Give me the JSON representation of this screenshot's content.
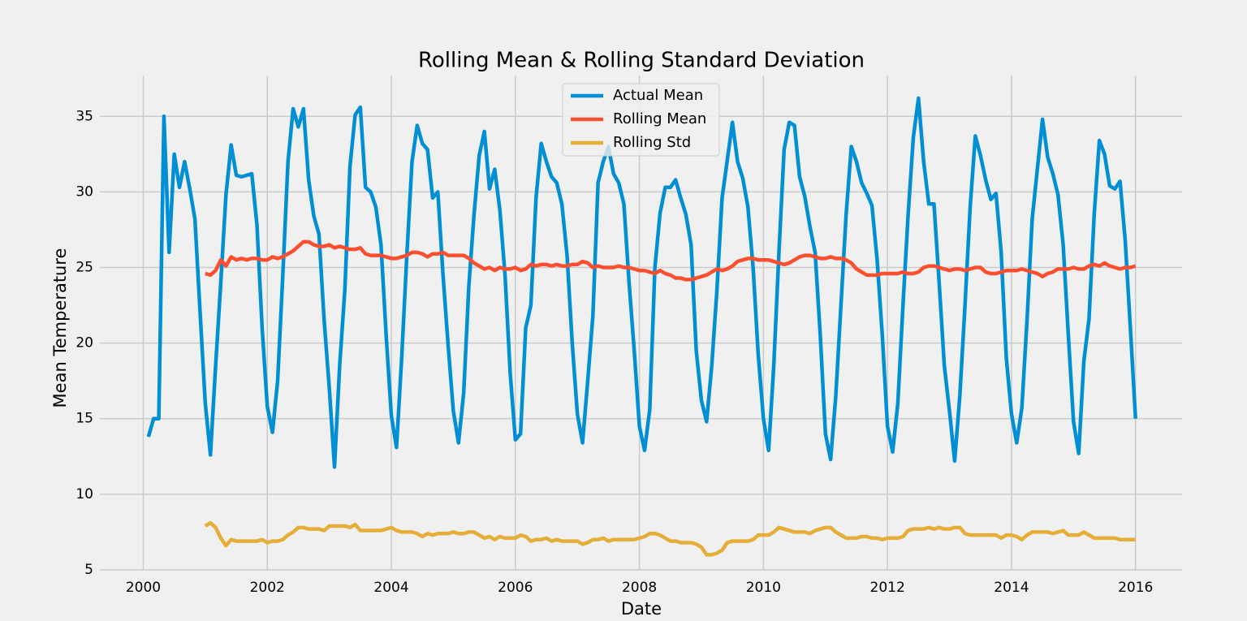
{
  "chart_data": {
    "type": "line",
    "title": "Rolling Mean & Rolling Standard Deviation",
    "x_label": "Date",
    "y_label": "Mean Temperature",
    "x": [
      "2000-01",
      "2000-02",
      "2000-03",
      "2000-04",
      "2000-05",
      "2000-06",
      "2000-07",
      "2000-08",
      "2000-09",
      "2000-10",
      "2000-11",
      "2000-12",
      "2001-01",
      "2001-02",
      "2001-03",
      "2001-04",
      "2001-05",
      "2001-06",
      "2001-07",
      "2001-08",
      "2001-09",
      "2001-10",
      "2001-11",
      "2001-12",
      "2002-01",
      "2002-02",
      "2002-03",
      "2002-04",
      "2002-05",
      "2002-06",
      "2002-07",
      "2002-08",
      "2002-09",
      "2002-10",
      "2002-11",
      "2002-12",
      "2003-01",
      "2003-02",
      "2003-03",
      "2003-04",
      "2003-05",
      "2003-06",
      "2003-07",
      "2003-08",
      "2003-09",
      "2003-10",
      "2003-11",
      "2003-12",
      "2004-01",
      "2004-02",
      "2004-03",
      "2004-04",
      "2004-05",
      "2004-06",
      "2004-07",
      "2004-08",
      "2004-09",
      "2004-10",
      "2004-11",
      "2004-12",
      "2005-01",
      "2005-02",
      "2005-03",
      "2005-04",
      "2005-05",
      "2005-06",
      "2005-07",
      "2005-08",
      "2005-09",
      "2005-10",
      "2005-11",
      "2005-12",
      "2006-01",
      "2006-02",
      "2006-03",
      "2006-04",
      "2006-05",
      "2006-06",
      "2006-07",
      "2006-08",
      "2006-09",
      "2006-10",
      "2006-11",
      "2006-12",
      "2007-01",
      "2007-02",
      "2007-03",
      "2007-04",
      "2007-05",
      "2007-06",
      "2007-07",
      "2007-08",
      "2007-09",
      "2007-10",
      "2007-11",
      "2007-12",
      "2008-01",
      "2008-02",
      "2008-03",
      "2008-04",
      "2008-05",
      "2008-06",
      "2008-07",
      "2008-08",
      "2008-09",
      "2008-10",
      "2008-11",
      "2008-12",
      "2009-01",
      "2009-02",
      "2009-03",
      "2009-04",
      "2009-05",
      "2009-06",
      "2009-07",
      "2009-08",
      "2009-09",
      "2009-10",
      "2009-11",
      "2009-12",
      "2010-01",
      "2010-02",
      "2010-03",
      "2010-04",
      "2010-05",
      "2010-06",
      "2010-07",
      "2010-08",
      "2010-09",
      "2010-10",
      "2010-11",
      "2010-12",
      "2011-01",
      "2011-02",
      "2011-03",
      "2011-04",
      "2011-05",
      "2011-06",
      "2011-07",
      "2011-08",
      "2011-09",
      "2011-10",
      "2011-11",
      "2011-12",
      "2012-01",
      "2012-02",
      "2012-03",
      "2012-04",
      "2012-05",
      "2012-06",
      "2012-07",
      "2012-08",
      "2012-09",
      "2012-10",
      "2012-11",
      "2012-12",
      "2013-01",
      "2013-02",
      "2013-03",
      "2013-04",
      "2013-05",
      "2013-06",
      "2013-07",
      "2013-08",
      "2013-09",
      "2013-10",
      "2013-11",
      "2013-12",
      "2014-01",
      "2014-02",
      "2014-03",
      "2014-04",
      "2014-05",
      "2014-06",
      "2014-07",
      "2014-08",
      "2014-09",
      "2014-10",
      "2014-11",
      "2014-12",
      "2015-01",
      "2015-02",
      "2015-03",
      "2015-04",
      "2015-05",
      "2015-06",
      "2015-07",
      "2015-08",
      "2015-09",
      "2015-10",
      "2015-11",
      "2015-12"
    ],
    "series": [
      {
        "name": "Actual Mean",
        "color": "#008fd5",
        "values": [
          13.8,
          15.0,
          15.0,
          35.0,
          26.0,
          32.5,
          30.3,
          32.0,
          30.2,
          28.2,
          22.0,
          16.0,
          12.6,
          18.5,
          24.0,
          29.8,
          33.1,
          31.1,
          31.0,
          31.1,
          31.2,
          27.8,
          21.0,
          15.8,
          14.1,
          17.5,
          24.5,
          32.0,
          35.5,
          34.3,
          35.5,
          30.8,
          28.4,
          27.2,
          21.5,
          17.0,
          11.8,
          18.5,
          23.5,
          31.7,
          35.1,
          35.6,
          30.3,
          30.0,
          29.0,
          26.5,
          20.5,
          15.2,
          13.1,
          19.0,
          25.8,
          32.0,
          34.4,
          33.2,
          32.8,
          29.6,
          30.0,
          24.5,
          19.8,
          15.5,
          13.4,
          16.7,
          23.8,
          28.5,
          32.4,
          34.0,
          30.2,
          31.5,
          28.8,
          24.5,
          18.0,
          13.6,
          14.0,
          21.0,
          22.5,
          29.6,
          33.2,
          32.0,
          31.0,
          30.6,
          29.2,
          25.8,
          20.0,
          15.3,
          13.4,
          17.5,
          21.8,
          30.6,
          32.0,
          33.0,
          31.2,
          30.6,
          29.2,
          24.0,
          19.5,
          14.5,
          12.9,
          15.6,
          25.0,
          28.6,
          30.3,
          30.3,
          30.8,
          29.6,
          28.5,
          26.5,
          19.5,
          16.2,
          14.8,
          18.5,
          23.5,
          29.6,
          32.1,
          34.6,
          32.0,
          30.9,
          29.0,
          25.0,
          19.2,
          15.0,
          12.9,
          18.5,
          26.0,
          32.8,
          34.6,
          34.4,
          31.0,
          29.7,
          27.7,
          26.0,
          20.5,
          14.0,
          12.3,
          16.5,
          22.5,
          28.5,
          33.0,
          32.0,
          30.6,
          29.9,
          29.1,
          25.5,
          20.5,
          14.5,
          12.8,
          16.0,
          22.5,
          28.5,
          33.6,
          36.2,
          32.0,
          29.2,
          29.2,
          24.0,
          18.5,
          15.5,
          12.2,
          16.5,
          22.5,
          29.0,
          33.7,
          32.4,
          30.8,
          29.5,
          29.9,
          26.0,
          19.0,
          15.3,
          13.4,
          15.7,
          21.5,
          28.2,
          31.5,
          34.8,
          32.3,
          31.2,
          29.8,
          26.5,
          20.5,
          14.8,
          12.7,
          18.8,
          21.6,
          28.5,
          33.4,
          32.5,
          30.4,
          30.2,
          30.7,
          26.8,
          21.0,
          15.0
        ]
      },
      {
        "name": "Rolling Mean",
        "color": "#fc4f30",
        "values": [
          null,
          null,
          null,
          null,
          null,
          null,
          null,
          null,
          null,
          null,
          null,
          24.6,
          24.5,
          24.8,
          25.5,
          25.1,
          25.7,
          25.5,
          25.6,
          25.5,
          25.6,
          25.6,
          25.5,
          25.5,
          25.7,
          25.6,
          25.7,
          25.9,
          26.1,
          26.4,
          26.7,
          26.7,
          26.5,
          26.4,
          26.4,
          26.5,
          26.3,
          26.4,
          26.3,
          26.2,
          26.2,
          26.3,
          25.9,
          25.8,
          25.8,
          25.8,
          25.7,
          25.6,
          25.6,
          25.7,
          25.8,
          26.0,
          26.0,
          25.9,
          25.7,
          25.9,
          25.9,
          26.0,
          25.8,
          25.8,
          25.8,
          25.8,
          25.6,
          25.3,
          25.1,
          24.9,
          25.0,
          24.8,
          25.0,
          24.9,
          24.9,
          25.0,
          24.8,
          24.9,
          25.2,
          25.1,
          25.2,
          25.2,
          25.1,
          25.2,
          25.1,
          25.1,
          25.2,
          25.2,
          25.4,
          25.3,
          25.0,
          25.1,
          25.0,
          25.0,
          25.0,
          25.1,
          25.0,
          25.0,
          24.9,
          24.8,
          24.8,
          24.7,
          24.6,
          24.8,
          24.6,
          24.5,
          24.3,
          24.3,
          24.2,
          24.2,
          24.3,
          24.4,
          24.5,
          24.7,
          24.9,
          24.8,
          24.9,
          25.1,
          25.4,
          25.5,
          25.6,
          25.6,
          25.5,
          25.5,
          25.5,
          25.4,
          25.3,
          25.2,
          25.3,
          25.5,
          25.7,
          25.8,
          25.8,
          25.7,
          25.6,
          25.6,
          25.7,
          25.6,
          25.6,
          25.5,
          25.3,
          24.9,
          24.7,
          24.5,
          24.5,
          24.5,
          24.6,
          24.6,
          24.6,
          24.6,
          24.7,
          24.6,
          24.6,
          24.7,
          25.0,
          25.1,
          25.1,
          25.0,
          24.9,
          24.8,
          24.9,
          24.9,
          24.8,
          24.9,
          25.0,
          25.0,
          24.7,
          24.6,
          24.6,
          24.7,
          24.8,
          24.8,
          24.8,
          24.9,
          24.8,
          24.7,
          24.6,
          24.4,
          24.6,
          24.7,
          24.9,
          24.9,
          24.9,
          25.0,
          24.9,
          24.9,
          25.1,
          25.2,
          25.1,
          25.3,
          25.1,
          25.0,
          24.9,
          25.0,
          25.0,
          25.1
        ]
      },
      {
        "name": "Rolling Std",
        "color": "#e5ae38",
        "values": [
          null,
          null,
          null,
          null,
          null,
          null,
          null,
          null,
          null,
          null,
          null,
          7.9,
          8.1,
          7.8,
          7.1,
          6.6,
          7.0,
          6.9,
          6.9,
          6.9,
          6.9,
          6.9,
          7.0,
          6.8,
          6.9,
          6.9,
          7.0,
          7.3,
          7.5,
          7.8,
          7.8,
          7.7,
          7.7,
          7.7,
          7.6,
          7.9,
          7.9,
          7.9,
          7.9,
          7.8,
          8.0,
          7.6,
          7.6,
          7.6,
          7.6,
          7.6,
          7.7,
          7.8,
          7.6,
          7.5,
          7.5,
          7.5,
          7.4,
          7.2,
          7.4,
          7.3,
          7.4,
          7.4,
          7.4,
          7.5,
          7.4,
          7.4,
          7.5,
          7.5,
          7.3,
          7.1,
          7.2,
          7.0,
          7.2,
          7.1,
          7.1,
          7.1,
          7.3,
          7.2,
          6.9,
          7.0,
          7.0,
          7.1,
          6.9,
          7.0,
          6.9,
          6.9,
          6.9,
          6.9,
          6.7,
          6.8,
          7.0,
          7.0,
          7.1,
          6.9,
          7.0,
          7.0,
          7.0,
          7.0,
          7.0,
          7.1,
          7.2,
          7.4,
          7.4,
          7.3,
          7.1,
          6.9,
          6.9,
          6.8,
          6.8,
          6.8,
          6.7,
          6.5,
          6.0,
          6.0,
          6.1,
          6.3,
          6.8,
          6.9,
          6.9,
          6.9,
          6.9,
          7.0,
          7.3,
          7.3,
          7.3,
          7.5,
          7.8,
          7.7,
          7.6,
          7.5,
          7.5,
          7.5,
          7.4,
          7.6,
          7.7,
          7.8,
          7.8,
          7.5,
          7.3,
          7.1,
          7.1,
          7.1,
          7.2,
          7.2,
          7.1,
          7.1,
          7.0,
          7.1,
          7.1,
          7.1,
          7.2,
          7.6,
          7.7,
          7.7,
          7.7,
          7.8,
          7.7,
          7.8,
          7.7,
          7.7,
          7.8,
          7.8,
          7.4,
          7.3,
          7.3,
          7.3,
          7.3,
          7.3,
          7.3,
          7.1,
          7.3,
          7.3,
          7.2,
          7.0,
          7.3,
          7.5,
          7.5,
          7.5,
          7.5,
          7.4,
          7.5,
          7.6,
          7.3,
          7.3,
          7.3,
          7.5,
          7.3,
          7.1,
          7.1,
          7.1,
          7.1,
          7.1,
          7.0,
          7.0,
          7.0,
          7.0
        ]
      }
    ],
    "xlim": [
      1999.3,
      2016.75
    ],
    "xticks": [
      2000,
      2002,
      2004,
      2006,
      2008,
      2010,
      2012,
      2014,
      2016
    ],
    "ylim": [
      4.3,
      37.7
    ],
    "yticks": [
      5,
      10,
      15,
      20,
      25,
      30,
      35
    ],
    "grid": true,
    "legend": "upper center"
  }
}
